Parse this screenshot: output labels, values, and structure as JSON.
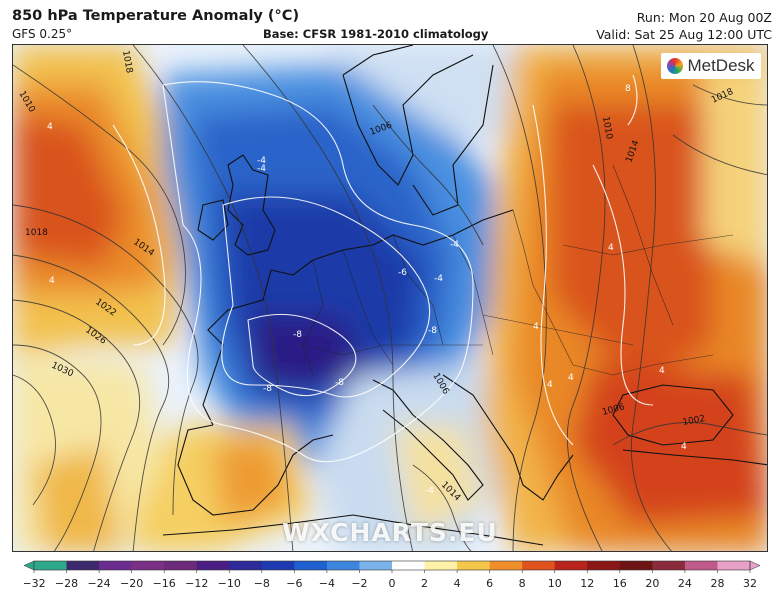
{
  "header": {
    "title": "850 hPa Temperature Anomaly (°C)",
    "model": "GFS 0.25°",
    "base": "Base: CFSR 1981-2010 climatology",
    "run": "Run: Mon 20 Aug 00Z",
    "valid": "Valid: Sat 25 Aug 12:00 UTC"
  },
  "logo": {
    "text": "MetDesk"
  },
  "watermark": {
    "text": "WXCHARTS.EU"
  },
  "legend": {
    "ticks": [
      "−32",
      "−28",
      "−24",
      "−20",
      "−16",
      "−12",
      "−10",
      "−8",
      "−6",
      "−4",
      "−2",
      "0",
      "2",
      "4",
      "6",
      "8",
      "10",
      "12",
      "16",
      "20",
      "24",
      "28",
      "32"
    ],
    "colors": [
      "#2ea88a",
      "#3d2a6e",
      "#6a2d8f",
      "#7a2f86",
      "#6e2a7a",
      "#4a1e82",
      "#2d2a9a",
      "#1d3ab0",
      "#1f5fcf",
      "#3e86dd",
      "#79b3ea",
      "#ffffff",
      "#fff2a8",
      "#f4c64a",
      "#ef8e2a",
      "#e0531c",
      "#b8241c",
      "#8a1618",
      "#6e1414",
      "#8a2a3a",
      "#c05a8a",
      "#e8a0c8"
    ]
  },
  "map": {
    "pressure_labels": [
      "1010",
      "1014",
      "1018",
      "1022",
      "1026",
      "1030",
      "1006",
      "1010",
      "1014",
      "1018",
      "1006",
      "1006",
      "1002",
      "1014",
      "1018"
    ],
    "anomaly_labels": [
      "4",
      "4",
      "-4",
      "-4",
      "-4",
      "-6",
      "-4",
      "-8",
      "-8",
      "-8",
      "-8",
      "4",
      "4",
      "4",
      "-4",
      "4",
      "8",
      "4",
      "4"
    ]
  }
}
